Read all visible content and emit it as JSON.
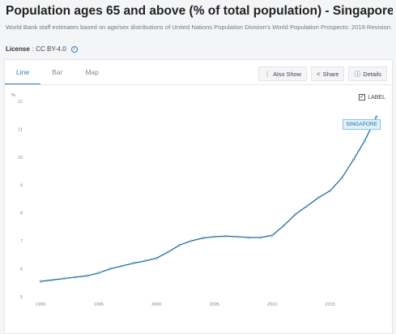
{
  "header": {
    "title": "Population ages 65 and above (% of total population) - Singapore",
    "subtitle": "World Bank staff estimates based on age/sex distributions of United Nations Population Division's World Population Prospects: 2019 Revision.",
    "license_label": "License",
    "license_value": ": CC BY-4.0"
  },
  "tabs": [
    {
      "label": "Line",
      "active": true
    },
    {
      "label": "Bar",
      "active": false
    },
    {
      "label": "Map",
      "active": false
    }
  ],
  "actions": {
    "also_show": "Also Show",
    "share": "Share",
    "details": "Details"
  },
  "label_toggle": {
    "text": "LABEL",
    "checked": true
  },
  "colors": {
    "accent": "#2f7fbf",
    "line": "#1f6f9a"
  },
  "chart_data": {
    "type": "line",
    "title": "",
    "xlabel": "",
    "ylabel": "%",
    "xlim": [
      1989,
      2019.5
    ],
    "ylim": [
      5,
      12
    ],
    "y_ticks": [
      5,
      6,
      7,
      8,
      9,
      10,
      11,
      12
    ],
    "x_ticks": [
      1990,
      1995,
      2000,
      2005,
      2010,
      2015
    ],
    "grid": false,
    "series": [
      {
        "name": "SINGAPORE",
        "x": [
          1990,
          1991,
          1992,
          1993,
          1994,
          1995,
          1996,
          1997,
          1998,
          1999,
          2000,
          2001,
          2002,
          2003,
          2004,
          2005,
          2006,
          2007,
          2008,
          2009,
          2010,
          2011,
          2012,
          2013,
          2014,
          2015,
          2016,
          2017,
          2018,
          2019
        ],
        "values": [
          5.55,
          5.6,
          5.65,
          5.7,
          5.75,
          5.85,
          6.0,
          6.1,
          6.2,
          6.28,
          6.38,
          6.6,
          6.85,
          7.0,
          7.1,
          7.15,
          7.17,
          7.15,
          7.12,
          7.12,
          7.2,
          7.55,
          7.95,
          8.25,
          8.55,
          8.8,
          9.25,
          9.9,
          10.6,
          11.45
        ]
      }
    ]
  }
}
